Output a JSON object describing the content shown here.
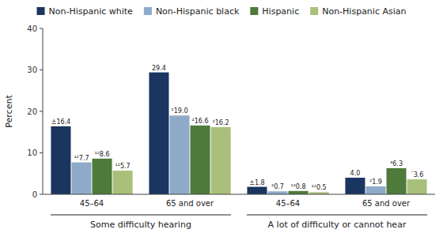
{
  "chart_data": {
    "type": "bar",
    "ylabel": "Percent",
    "categories": [
      "45–64",
      "65 and over",
      "45–64",
      "65 and over"
    ],
    "annotations": [
      "Some difficulty hearing",
      "A lot of difficulty or cannot hear"
    ],
    "series": [
      {
        "name": "Non-Hispanic white",
        "color": "#1a3560",
        "values": [
          16.4,
          29.4,
          1.8,
          4.0
        ],
        "value_labels": [
          "±16.4",
          "29.4",
          "±1.8",
          "4.0"
        ]
      },
      {
        "name": "Non-Hispanic black",
        "color": "#8eaac8",
        "values": [
          7.7,
          19.0,
          0.7,
          1.9
        ],
        "value_labels": [
          "¹²7.7",
          "²19.0",
          "²0.7",
          "²1.9"
        ]
      },
      {
        "name": "Hispanic",
        "color": "#4e7a3c",
        "values": [
          8.6,
          16.6,
          0.8,
          6.3
        ],
        "value_labels": [
          "¹²8.6",
          "²16.6",
          "¹²0.8",
          "³6.3"
        ]
      },
      {
        "name": "Non-Hispanic Asian",
        "color": "#a8c07a",
        "values": [
          5.7,
          16.2,
          0.5,
          3.6
        ],
        "value_labels": [
          "¹²5.7",
          "²16.2",
          "¹²0.5",
          "´3.6"
        ]
      }
    ],
    "ylim": [
      0,
      40
    ],
    "yticks": [
      0,
      10,
      20,
      30,
      40
    ],
    "grid": false,
    "legend": "top",
    "data_labels": true
  }
}
